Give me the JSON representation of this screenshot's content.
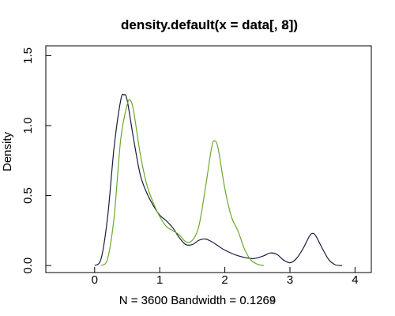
{
  "chart_data": {
    "type": "line",
    "title": "density.default(x = data[, 8])",
    "title_overlay": "density.default(x = data[, 2])",
    "xlabel": "N = 3600   Bandwidth = 0.1269",
    "xlabel_overlay": "N = 3600   Bandwidth = 0.1264",
    "ylabel": "Density",
    "xlim": [
      -0.75,
      4.25
    ],
    "ylim": [
      -0.05,
      1.57
    ],
    "x_ticks": [
      "0",
      "1",
      "2",
      "3",
      "4"
    ],
    "y_ticks": [
      "0.0",
      "0.5",
      "1.0",
      "1.5"
    ],
    "grid": false,
    "legend": "none",
    "series": [
      {
        "color": "#1a1a40",
        "x": [
          0.0,
          0.1,
          0.2,
          0.3,
          0.4,
          0.45,
          0.5,
          0.6,
          0.7,
          0.8,
          0.9,
          1.0,
          1.1,
          1.2,
          1.3,
          1.4,
          1.5,
          1.6,
          1.7,
          1.8,
          1.9,
          2.0,
          2.2,
          2.4,
          2.5,
          2.6,
          2.7,
          2.8,
          2.9,
          3.0,
          3.1,
          3.2,
          3.3,
          3.35,
          3.4,
          3.5,
          3.6,
          3.7,
          3.8
        ],
        "y": [
          0.0,
          0.05,
          0.35,
          0.85,
          1.18,
          1.22,
          1.18,
          0.9,
          0.65,
          0.52,
          0.43,
          0.36,
          0.32,
          0.27,
          0.2,
          0.15,
          0.15,
          0.18,
          0.19,
          0.17,
          0.14,
          0.11,
          0.07,
          0.05,
          0.055,
          0.07,
          0.09,
          0.08,
          0.04,
          0.02,
          0.05,
          0.12,
          0.21,
          0.23,
          0.21,
          0.12,
          0.04,
          0.005,
          0.0
        ]
      },
      {
        "color": "#6aaa2a",
        "x": [
          0.1,
          0.2,
          0.3,
          0.4,
          0.5,
          0.55,
          0.6,
          0.7,
          0.8,
          0.9,
          1.0,
          1.1,
          1.2,
          1.3,
          1.4,
          1.5,
          1.6,
          1.7,
          1.8,
          1.85,
          1.9,
          2.0,
          2.1,
          2.2,
          2.3,
          2.4,
          2.5,
          2.6
        ],
        "y": [
          0.0,
          0.05,
          0.35,
          0.9,
          1.15,
          1.18,
          1.1,
          0.8,
          0.58,
          0.45,
          0.35,
          0.28,
          0.25,
          0.22,
          0.17,
          0.18,
          0.28,
          0.55,
          0.85,
          0.89,
          0.83,
          0.55,
          0.35,
          0.25,
          0.12,
          0.04,
          0.01,
          0.0
        ]
      }
    ]
  }
}
